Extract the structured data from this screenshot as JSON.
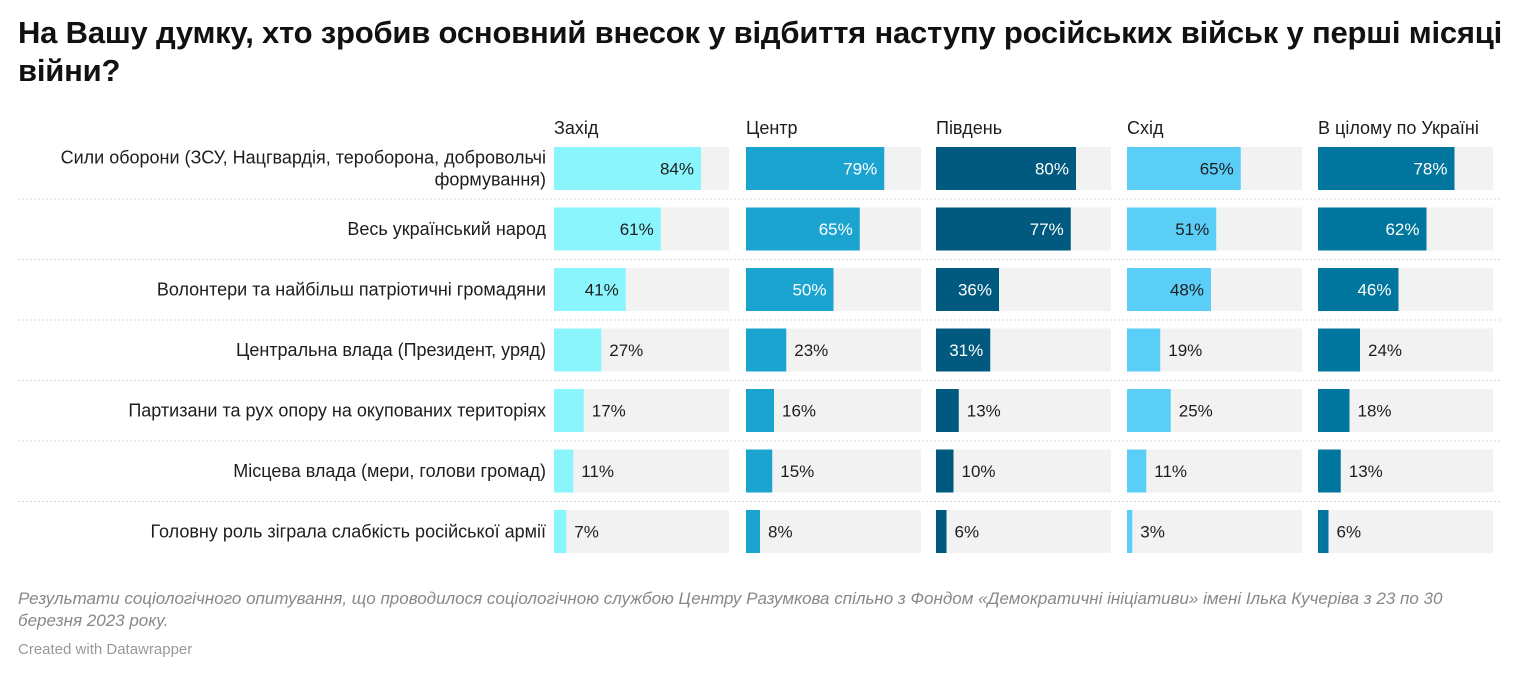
{
  "title": "На Вашу думку, хто зробив основний внесок у відбиття наступу російських військ у перші місяці війни?",
  "notes": "Результати соціологічного опитування, що проводилося соціологічною службою Центру Разумкова спільно з Фондом «Демократичні ініціативи» імені Ілька Кучеріва з 23 по 30 березня 2023 року.",
  "credit": "Created with Datawrapper",
  "chart_data": {
    "type": "bar",
    "orientation": "horizontal",
    "small_multiples": true,
    "categories": [
      [
        "Сили оборони (ЗСУ, Нацгвардія, тероборона, добровольчі",
        "формування)"
      ],
      [
        "Весь український народ"
      ],
      [
        "Волонтери та найбільш патріотичні громадяни"
      ],
      [
        "Центральна влада (Президент, уряд)"
      ],
      [
        "Партизани та рух опору на окупованих територіях"
      ],
      [
        "Місцева влада (мери, голови громад)"
      ],
      [
        "Головну роль зіграла слабкість російської армії"
      ]
    ],
    "xlim": [
      0,
      100
    ],
    "value_suffix": "%",
    "series": [
      {
        "name": "Захід",
        "color": "#8bf5fd",
        "values": [
          84,
          61,
          41,
          27,
          17,
          11,
          7
        ]
      },
      {
        "name": "Центр",
        "color": "#1ca4d0",
        "values": [
          79,
          65,
          50,
          23,
          16,
          15,
          8
        ]
      },
      {
        "name": "Південь",
        "color": "#00597e",
        "values": [
          80,
          77,
          36,
          31,
          13,
          10,
          6
        ]
      },
      {
        "name": "Схід",
        "color": "#5bcef7",
        "values": [
          65,
          51,
          48,
          19,
          25,
          11,
          3
        ]
      },
      {
        "name": "В цілому по Україні",
        "color": "#00759d",
        "values": [
          78,
          62,
          46,
          24,
          18,
          13,
          6
        ]
      }
    ],
    "background_color": "#f2f2f2"
  }
}
